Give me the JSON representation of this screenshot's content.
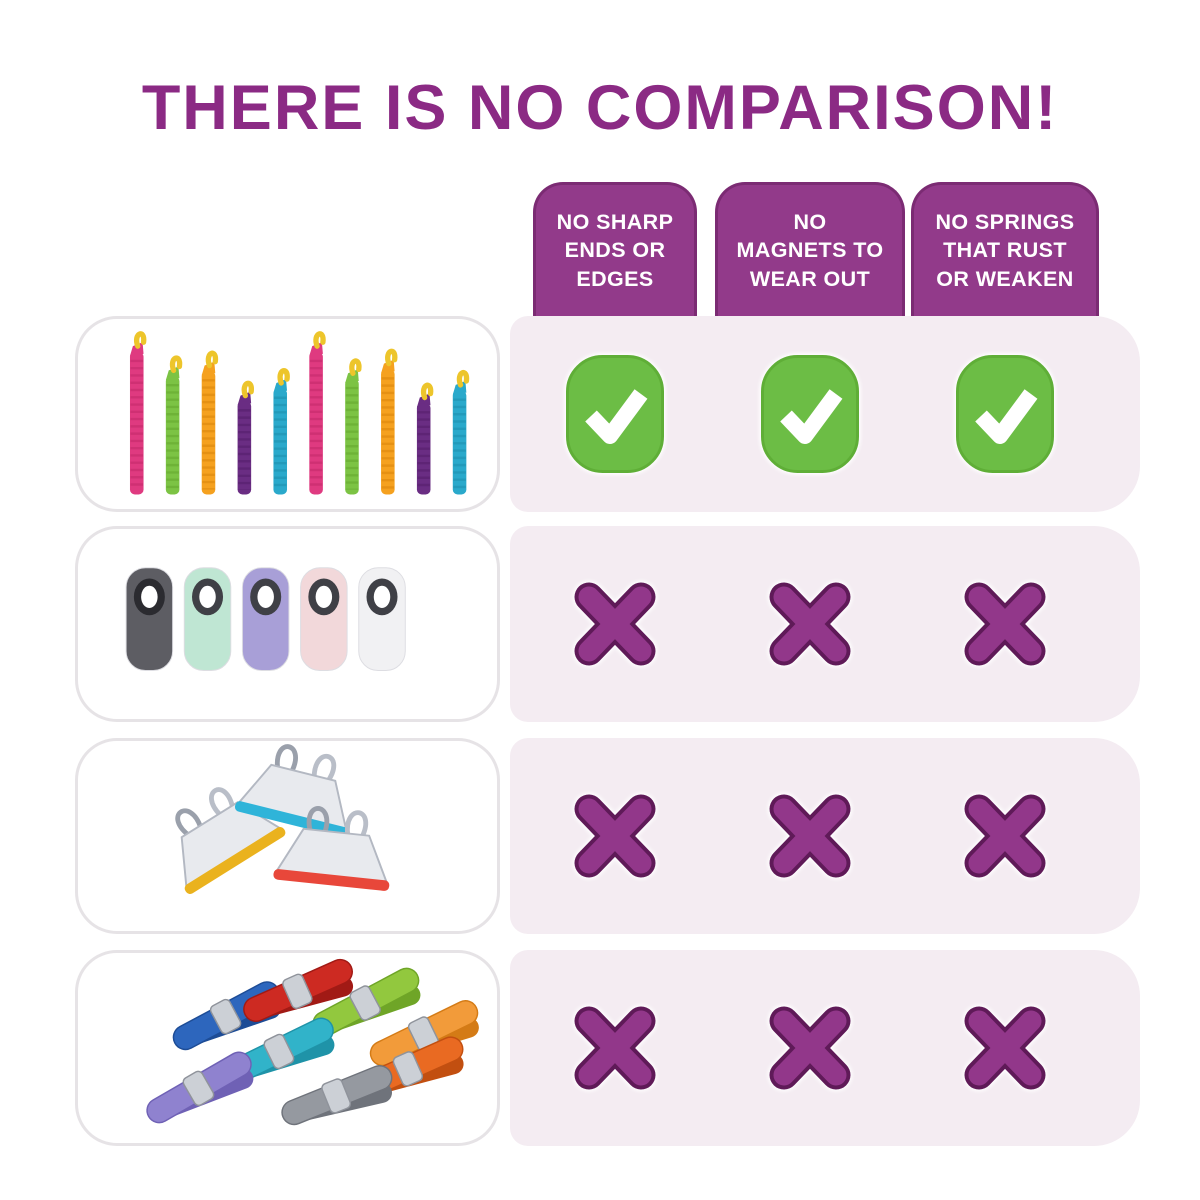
{
  "title": {
    "text": "THERE IS NO COMPARISON!"
  },
  "columns": [
    {
      "label": "NO SHARP ENDS OR EDGES",
      "lines": [
        "NO SHARP",
        "ENDS OR",
        "EDGES"
      ]
    },
    {
      "label": "NO MAGNETS TO WEAR OUT",
      "lines": [
        "NO",
        "MAGNETS TO",
        "WEAR OUT"
      ]
    },
    {
      "label": "NO SPRINGS THAT RUST OR WEAKEN",
      "lines": [
        "NO SPRINGS",
        "THAT RUST",
        "OR WEAKEN"
      ]
    }
  ],
  "rows": [
    {
      "product": "colorful-bag-sealer-sticks",
      "marks": [
        "check",
        "check",
        "check"
      ]
    },
    {
      "product": "magnetic-bag-clips",
      "marks": [
        "x",
        "x",
        "x"
      ]
    },
    {
      "product": "metal-hinge-bag-clips",
      "marks": [
        "x",
        "x",
        "x"
      ]
    },
    {
      "product": "plastic-spring-clips",
      "marks": [
        "x",
        "x",
        "x"
      ]
    }
  ],
  "colors": {
    "title": "#8b2a84",
    "tab_fill": "#923a8a",
    "tab_border": "#7b2b73",
    "tab_text": "#ffffff",
    "check_fill": "#6cbd45",
    "check_border": "#5fae37",
    "check_glyph": "#ffffff",
    "x_fill": "#92378a",
    "x_outline": "#5f1a58",
    "row_panel": "#f4ecf2",
    "card_border": "#e6e3e6",
    "card_bg": "#ffffff",
    "page_bg": "#ffffff"
  },
  "chart_data": {
    "type": "table",
    "title": "THERE IS NO COMPARISON!",
    "columns": [
      "NO SHARP ENDS OR EDGES",
      "NO MAGNETS TO WEAR OUT",
      "NO SPRINGS THAT RUST OR WEAKEN"
    ],
    "rows": [
      {
        "product": "Colorful bag sealer sticks (featured product)",
        "values": [
          true,
          true,
          true
        ]
      },
      {
        "product": "Magnetic bag clips",
        "values": [
          false,
          false,
          false
        ]
      },
      {
        "product": "Metal hinge-style bag clips",
        "values": [
          false,
          false,
          false
        ]
      },
      {
        "product": "Plastic spring clips",
        "values": [
          false,
          false,
          false
        ]
      }
    ],
    "legend": {
      "check": "has benefit",
      "x": "lacks benefit"
    }
  }
}
